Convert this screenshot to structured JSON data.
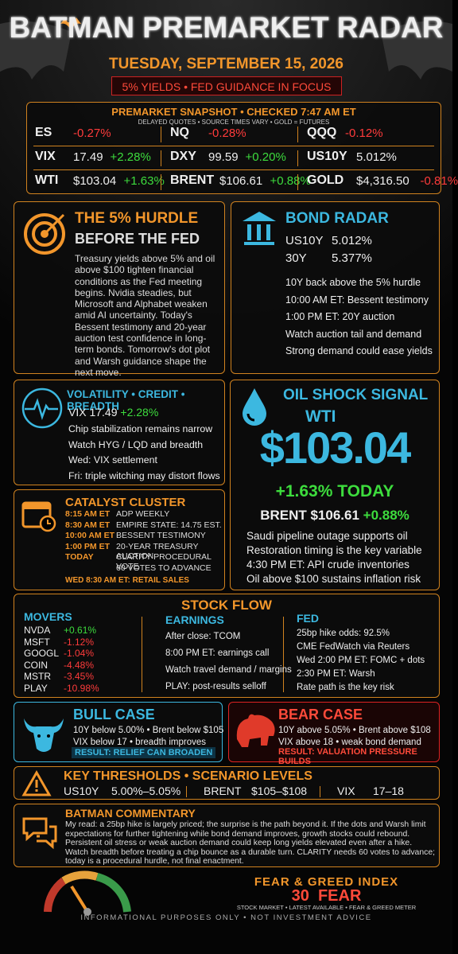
{
  "header": {
    "title": "BATMAN PREMARKET RADAR",
    "date": "TUESDAY, SEPTEMBER 15, 2026",
    "banner": "5% YIELDS • FED GUIDANCE IN FOCUS"
  },
  "snapshot": {
    "title": "PREMARKET SNAPSHOT • CHECKED 7:47 AM ET",
    "note": "DELAYED QUOTES • SOURCE TIMES VARY • GOLD = FUTURES",
    "rows": [
      [
        {
          "sym": "ES",
          "change": "-0.27%"
        },
        {
          "sym": "NQ",
          "change": "-0.28%"
        },
        {
          "sym": "QQQ",
          "change": "-0.12%"
        }
      ],
      [
        {
          "sym": "VIX",
          "price": "17.49",
          "change": "+2.28%"
        },
        {
          "sym": "DXY",
          "price": "99.59",
          "change": "+0.20%"
        },
        {
          "sym": "US10Y",
          "price": "5.012%"
        }
      ],
      [
        {
          "sym": "WTI",
          "price": "$103.04",
          "change": "+1.63%"
        },
        {
          "sym": "BRENT",
          "price": "$106.61",
          "change": "+0.88%"
        },
        {
          "sym": "GOLD",
          "price": "$4,316.50",
          "change": "-0.81%"
        }
      ]
    ]
  },
  "hurdle": {
    "title": "THE 5% HURDLE",
    "subtitle": "BEFORE THE FED",
    "body": "Treasury yields above 5% and oil above $100 tighten financial conditions as the Fed meeting begins. Nvidia steadies, but Microsoft and Alphabet weaken amid AI uncertainty. Today's Bessent testimony and 20-year auction test confidence in long-term bonds. Tomorrow's dot plot and Warsh guidance shape the next move."
  },
  "bond": {
    "title": "BOND RADAR",
    "rows": [
      [
        "US10Y",
        "5.012%"
      ],
      [
        "30Y",
        "5.377%"
      ]
    ],
    "lines": [
      "10Y back above the 5% hurdle",
      "10:00 AM ET: Bessent testimony",
      "1:00 PM ET: 20Y auction",
      "Watch auction tail and demand",
      "Strong demand could ease yields"
    ]
  },
  "vol": {
    "title": "VOLATILITY • CREDIT • BREADTH",
    "vix": "VIX 17.49",
    "change": "+2.28%",
    "lines": [
      "Chip stabilization remains narrow",
      "Watch HYG / LQD and breadth",
      "Wed: VIX settlement",
      "Fri: triple witching may distort flows"
    ]
  },
  "oil": {
    "title": "OIL SHOCK SIGNAL",
    "label": "WTI",
    "price": "$103.04",
    "change": "+1.63% TODAY",
    "brent": "BRENT $106.61",
    "brent_change": "+0.88%",
    "lines": [
      "Saudi pipeline outage supports oil",
      "Restoration timing is the key variable",
      "4:30 PM ET: API crude inventories",
      "Oil above $100 sustains inflation risk"
    ]
  },
  "catalyst": {
    "title": "CATALYST CLUSTER",
    "events": [
      {
        "time": "8:15 AM ET",
        "text": "ADP WEEKLY"
      },
      {
        "time": "8:30 AM ET",
        "text": "EMPIRE STATE: 14.75 EST."
      },
      {
        "time": "10:00 AM ET",
        "text": "BESSENT TESTIMONY"
      },
      {
        "time": "1:00 PM ET",
        "text": "20-YEAR TREASURY AUCTION"
      },
      {
        "time": "TODAY",
        "text": "CLARITY PROCEDURAL VOTE"
      },
      {
        "text": "60 VOTES TO ADVANCE"
      }
    ],
    "footer": "WED 8:30 AM ET: RETAIL SALES"
  },
  "stock_flow": {
    "title": "STOCK FLOW",
    "movers_title": "MOVERS",
    "movers": [
      [
        "NVDA",
        "+0.61%"
      ],
      [
        "MSFT",
        "-1.12%"
      ],
      [
        "GOOGL",
        "-1.04%"
      ],
      [
        "COIN",
        "-4.48%"
      ],
      [
        "MSTR",
        "-3.45%"
      ],
      [
        "PLAY",
        "-10.98%"
      ]
    ],
    "earnings_title": "EARNINGS",
    "earnings": [
      "After close: TCOM",
      "8:00 PM ET: earnings call",
      "Watch travel demand / margins",
      "PLAY: post-results selloff"
    ],
    "fed_title": "FED",
    "fed": [
      "25bp hike odds: 92.5%",
      "CME FedWatch via Reuters",
      "Wed 2:00 PM ET: FOMC + dots",
      "2:30 PM ET: Warsh",
      "Rate path is the key risk"
    ]
  },
  "bull": {
    "title": "BULL CASE",
    "lines": [
      "10Y below 5.00% • Brent below $105",
      "VIX below 17 • breadth improves"
    ],
    "result": "RESULT: RELIEF CAN BROADEN"
  },
  "bear": {
    "title": "BEAR CASE",
    "lines": [
      "10Y above 5.05% • Brent above $108",
      "VIX above 18 • weak bond demand"
    ],
    "result": "RESULT: VALUATION PRESSURE BUILDS"
  },
  "thresholds": {
    "title": "KEY THRESHOLDS • SCENARIO LEVELS",
    "items": [
      [
        "US10Y",
        "5.00%–5.05%"
      ],
      [
        "BRENT",
        "$105–$108"
      ],
      [
        "VIX",
        "17–18"
      ]
    ]
  },
  "commentary": {
    "title": "BATMAN COMMENTARY",
    "text": "My read: a 25bp hike is largely priced; the surprise is the path beyond it. If the dots and Warsh limit expectations for further tightening while bond demand improves, growth stocks could rebound. Persistent oil stress or weak auction demand could keep long yields elevated even after a hike. Watch breadth before treating a chip bounce as a durable turn. CLARITY needs 60 votes to advance; today is a procedural hurdle, not final enactment."
  },
  "fear_greed": {
    "title": "FEAR & GREED INDEX",
    "value": "30",
    "label": "FEAR",
    "sub": "STOCK MARKET • LATEST AVAILABLE • FEAR & GREED METER"
  },
  "footer": "INFORMATIONAL PURPOSES ONLY • NOT INVESTMENT ADVICE"
}
